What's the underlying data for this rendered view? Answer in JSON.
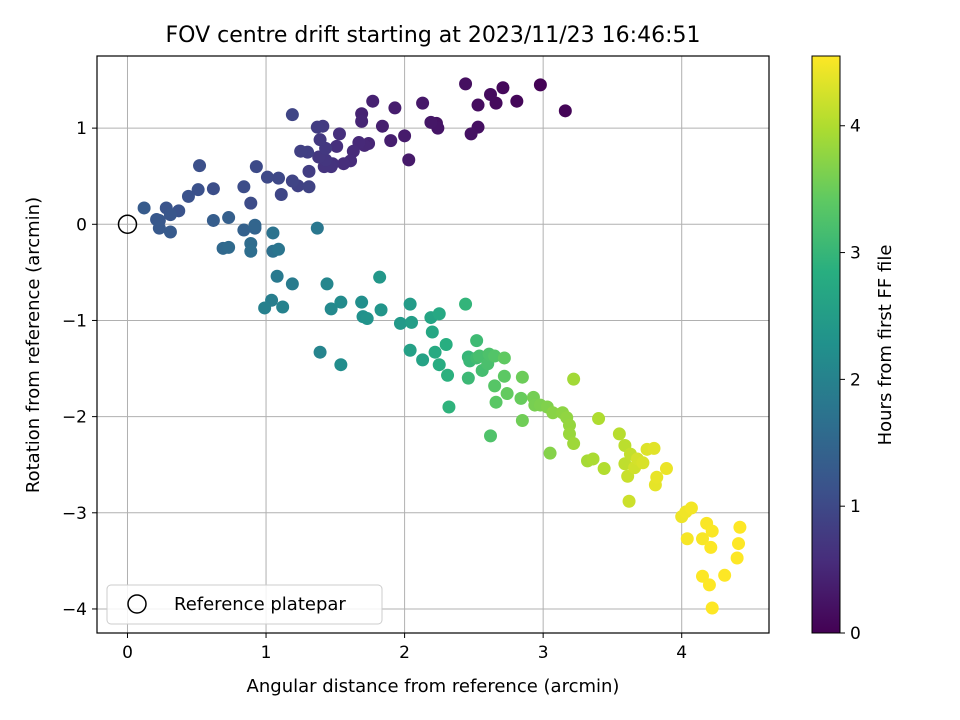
{
  "chart_data": {
    "type": "scatter",
    "title": "FOV centre drift starting at 2023/11/23 16:46:51",
    "xlabel": "Angular distance from reference (arcmin)",
    "ylabel": "Rotation from reference (arcmin)",
    "xlim": [
      -0.22,
      4.63
    ],
    "ylim": [
      -4.25,
      1.75
    ],
    "xticks": [
      0,
      1,
      2,
      3,
      4
    ],
    "yticks": [
      -4,
      -3,
      -2,
      -1,
      0,
      1
    ],
    "grid": true,
    "colormap": "viridis",
    "colorbar": {
      "label": "Hours from first FF file",
      "range": [
        0,
        4.55
      ],
      "ticks": [
        0,
        1,
        2,
        3,
        4
      ]
    },
    "legend": {
      "placement": "lower-left",
      "entries": [
        "Reference platepar"
      ]
    },
    "reference_point": {
      "x": 0,
      "y": 0
    },
    "series": [
      {
        "points": [
          [
            2.98,
            1.45,
            0.03
          ],
          [
            3.16,
            1.18,
            0.05
          ],
          [
            2.81,
            1.28,
            0.08
          ],
          [
            2.71,
            1.42,
            0.1
          ],
          [
            2.66,
            1.26,
            0.12
          ],
          [
            2.62,
            1.35,
            0.14
          ],
          [
            2.53,
            1.24,
            0.16
          ],
          [
            2.44,
            1.46,
            0.18
          ],
          [
            2.53,
            1.01,
            0.2
          ],
          [
            2.48,
            0.94,
            0.22
          ],
          [
            2.23,
            1.05,
            0.24
          ],
          [
            2.24,
            1.0,
            0.26
          ],
          [
            2.19,
            1.06,
            0.28
          ],
          [
            2.13,
            1.26,
            0.3
          ],
          [
            2.03,
            0.67,
            0.32
          ],
          [
            2.0,
            0.92,
            0.34
          ],
          [
            1.93,
            1.21,
            0.36
          ],
          [
            1.9,
            0.87,
            0.38
          ],
          [
            1.84,
            1.02,
            0.4
          ],
          [
            1.77,
            1.28,
            0.42
          ],
          [
            1.69,
            1.15,
            0.44
          ],
          [
            1.69,
            1.07,
            0.46
          ],
          [
            1.74,
            0.84,
            0.48
          ],
          [
            1.71,
            0.82,
            0.5
          ],
          [
            1.67,
            0.85,
            0.52
          ],
          [
            1.63,
            0.76,
            0.54
          ],
          [
            1.61,
            0.66,
            0.56
          ],
          [
            1.56,
            0.63,
            0.58
          ],
          [
            1.51,
            0.81,
            0.6
          ],
          [
            1.53,
            0.94,
            0.62
          ],
          [
            1.48,
            0.63,
            0.64
          ],
          [
            1.47,
            0.6,
            0.66
          ],
          [
            1.42,
            0.6,
            0.68
          ],
          [
            1.43,
            0.67,
            0.7
          ],
          [
            1.38,
            0.7,
            0.72
          ],
          [
            1.43,
            0.79,
            0.74
          ],
          [
            1.39,
            0.88,
            0.76
          ],
          [
            1.41,
            1.02,
            0.78
          ],
          [
            1.37,
            1.01,
            0.8
          ],
          [
            1.31,
            0.55,
            0.82
          ],
          [
            1.3,
            0.75,
            0.84
          ],
          [
            1.25,
            0.76,
            0.86
          ],
          [
            1.23,
            0.4,
            0.88
          ],
          [
            1.31,
            0.39,
            0.9
          ],
          [
            1.19,
            0.45,
            0.92
          ],
          [
            1.19,
            1.14,
            0.94
          ],
          [
            1.11,
            0.31,
            0.96
          ],
          [
            1.09,
            0.48,
            0.98
          ],
          [
            1.01,
            0.49,
            1.0
          ],
          [
            0.93,
            0.6,
            1.02
          ],
          [
            0.89,
            0.22,
            1.04
          ],
          [
            0.84,
            0.39,
            1.06
          ],
          [
            0.62,
            0.37,
            1.08
          ],
          [
            0.52,
            0.61,
            1.1
          ],
          [
            0.51,
            0.36,
            1.12
          ],
          [
            0.44,
            0.29,
            1.14
          ],
          [
            0.37,
            0.14,
            1.16
          ],
          [
            0.28,
            0.17,
            1.18
          ],
          [
            0.31,
            0.1,
            1.2
          ],
          [
            0.23,
            0.04,
            1.22
          ],
          [
            0.21,
            0.05,
            1.24
          ],
          [
            0.23,
            -0.04,
            1.26
          ],
          [
            0.31,
            -0.08,
            1.28
          ],
          [
            0.12,
            0.17,
            1.3
          ],
          [
            0.62,
            0.04,
            1.33
          ],
          [
            0.73,
            0.07,
            1.36
          ],
          [
            0.84,
            -0.06,
            1.4
          ],
          [
            0.92,
            -0.04,
            1.44
          ],
          [
            0.92,
            -0.01,
            1.48
          ],
          [
            0.69,
            -0.25,
            1.52
          ],
          [
            0.73,
            -0.24,
            1.56
          ],
          [
            0.89,
            -0.2,
            1.6
          ],
          [
            0.89,
            -0.28,
            1.64
          ],
          [
            1.05,
            -0.28,
            1.68
          ],
          [
            1.05,
            -0.09,
            1.72
          ],
          [
            1.09,
            -0.26,
            1.76
          ],
          [
            1.37,
            -0.04,
            1.8
          ],
          [
            1.08,
            -0.54,
            1.84
          ],
          [
            1.19,
            -0.62,
            1.88
          ],
          [
            1.04,
            -0.79,
            1.92
          ],
          [
            0.99,
            -0.87,
            1.96
          ],
          [
            1.12,
            -0.86,
            2.0
          ],
          [
            1.39,
            -1.33,
            2.04
          ],
          [
            1.44,
            -0.62,
            2.08
          ],
          [
            1.47,
            -0.88,
            2.12
          ],
          [
            1.54,
            -0.81,
            2.16
          ],
          [
            1.54,
            -1.46,
            2.2
          ],
          [
            1.69,
            -0.81,
            2.24
          ],
          [
            1.7,
            -0.96,
            2.28
          ],
          [
            1.73,
            -0.98,
            2.32
          ],
          [
            1.83,
            -0.89,
            2.36
          ],
          [
            1.82,
            -0.55,
            2.4
          ],
          [
            1.97,
            -1.03,
            2.44
          ],
          [
            2.04,
            -0.83,
            2.48
          ],
          [
            2.05,
            -1.02,
            2.52
          ],
          [
            2.04,
            -1.31,
            2.56
          ],
          [
            2.13,
            -1.41,
            2.6
          ],
          [
            2.19,
            -0.97,
            2.64
          ],
          [
            2.2,
            -1.12,
            2.68
          ],
          [
            2.25,
            -0.93,
            2.72
          ],
          [
            2.22,
            -1.33,
            2.76
          ],
          [
            2.25,
            -1.46,
            2.8
          ],
          [
            2.3,
            -1.25,
            2.84
          ],
          [
            2.31,
            -1.57,
            2.88
          ],
          [
            2.32,
            -1.9,
            2.92
          ],
          [
            2.44,
            -0.83,
            2.96
          ],
          [
            2.46,
            -1.38,
            3.0
          ],
          [
            2.47,
            -1.42,
            3.03
          ],
          [
            2.46,
            -1.6,
            3.06
          ],
          [
            2.52,
            -1.21,
            3.09
          ],
          [
            2.52,
            -1.39,
            3.12
          ],
          [
            2.56,
            -1.52,
            3.15
          ],
          [
            2.54,
            -1.37,
            3.18
          ],
          [
            2.6,
            -1.45,
            3.21
          ],
          [
            2.61,
            -1.35,
            3.24
          ],
          [
            2.62,
            -2.2,
            3.27
          ],
          [
            2.65,
            -1.37,
            3.3
          ],
          [
            2.65,
            -1.68,
            3.33
          ],
          [
            2.66,
            -1.85,
            3.36
          ],
          [
            2.72,
            -1.58,
            3.39
          ],
          [
            2.72,
            -1.39,
            3.42
          ],
          [
            2.74,
            -1.76,
            3.45
          ],
          [
            2.84,
            -1.81,
            3.48
          ],
          [
            2.85,
            -1.59,
            3.51
          ],
          [
            2.85,
            -2.04,
            3.54
          ],
          [
            2.93,
            -1.8,
            3.57
          ],
          [
            2.94,
            -1.88,
            3.6
          ],
          [
            2.98,
            -1.88,
            3.63
          ],
          [
            3.03,
            -1.9,
            3.66
          ],
          [
            3.05,
            -2.38,
            3.69
          ],
          [
            3.07,
            -1.96,
            3.72
          ],
          [
            3.14,
            -1.96,
            3.75
          ],
          [
            3.17,
            -2.01,
            3.78
          ],
          [
            3.19,
            -2.09,
            3.81
          ],
          [
            3.19,
            -2.18,
            3.84
          ],
          [
            3.22,
            -2.28,
            3.87
          ],
          [
            3.22,
            -1.61,
            3.9
          ],
          [
            3.32,
            -2.46,
            3.93
          ],
          [
            3.36,
            -2.44,
            3.96
          ],
          [
            3.4,
            -2.02,
            3.99
          ],
          [
            3.44,
            -2.54,
            4.02
          ],
          [
            3.55,
            -2.18,
            4.05
          ],
          [
            3.59,
            -2.3,
            4.08
          ],
          [
            3.59,
            -2.49,
            4.11
          ],
          [
            3.63,
            -2.39,
            4.14
          ],
          [
            3.61,
            -2.62,
            4.17
          ],
          [
            3.62,
            -2.88,
            4.2
          ],
          [
            3.66,
            -2.53,
            4.23
          ],
          [
            3.68,
            -2.44,
            4.26
          ],
          [
            3.72,
            -2.48,
            4.29
          ],
          [
            3.75,
            -2.34,
            4.32
          ],
          [
            3.8,
            -2.33,
            4.35
          ],
          [
            3.81,
            -2.71,
            4.38
          ],
          [
            3.82,
            -2.63,
            4.4
          ],
          [
            3.89,
            -2.54,
            4.42
          ],
          [
            4.0,
            -3.04,
            4.44
          ],
          [
            4.03,
            -2.99,
            4.46
          ],
          [
            4.07,
            -2.95,
            4.48
          ],
          [
            4.04,
            -3.27,
            4.5
          ],
          [
            4.15,
            -3.27,
            4.51
          ],
          [
            4.18,
            -3.11,
            4.52
          ],
          [
            4.22,
            -3.19,
            4.53
          ],
          [
            4.21,
            -3.36,
            4.54
          ],
          [
            4.15,
            -3.66,
            4.54
          ],
          [
            4.2,
            -3.75,
            4.55
          ],
          [
            4.22,
            -3.99,
            4.55
          ],
          [
            4.31,
            -3.65,
            4.55
          ],
          [
            4.42,
            -3.15,
            4.55
          ],
          [
            4.41,
            -3.32,
            4.55
          ],
          [
            4.4,
            -3.47,
            4.55
          ]
        ]
      }
    ]
  }
}
